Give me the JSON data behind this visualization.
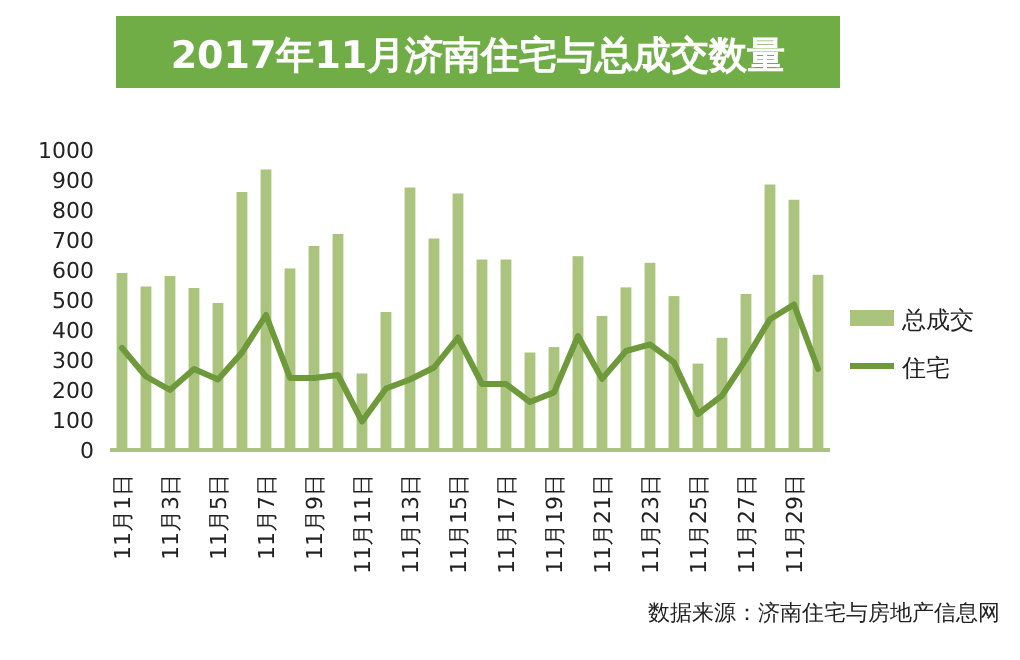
{
  "chart_data": {
    "type": "bar",
    "title": "2017年11月济南住宅与总成交数量",
    "categories": [
      "11月1日",
      null,
      "11月3日",
      null,
      "11月5日",
      null,
      "11月7日",
      null,
      "11月9日",
      null,
      "11月11日",
      null,
      "11月13日",
      null,
      "11月15日",
      null,
      "11月17日",
      null,
      "11月19日",
      null,
      "11月21日",
      null,
      "11月23日",
      null,
      "11月25日",
      null,
      "11月27日",
      null,
      "11月29日",
      null
    ],
    "series": [
      {
        "name": "总成交",
        "color": "#aac47e",
        "values": [
          590,
          545,
          580,
          540,
          490,
          860,
          935,
          605,
          680,
          720,
          255,
          460,
          875,
          705,
          855,
          635,
          635,
          325,
          343,
          646,
          447,
          542,
          624,
          513,
          288,
          374,
          520,
          885,
          834,
          584
        ]
      },
      {
        "name": "住宅",
        "type": "line",
        "color": "#6f9a3c",
        "values": [
          340,
          245,
          200,
          270,
          235,
          325,
          450,
          240,
          240,
          250,
          95,
          205,
          235,
          275,
          375,
          220,
          220,
          160,
          192,
          380,
          237,
          330,
          352,
          292,
          120,
          181,
          303,
          436,
          485,
          270
        ]
      }
    ],
    "ylim": [
      0,
      1000
    ],
    "yticks": [
      0,
      100,
      200,
      300,
      400,
      500,
      600,
      700,
      800,
      900,
      1000
    ],
    "legend": "right",
    "grid": false,
    "marker": "none",
    "line_style": "solid",
    "annotations": [
      "数据来源：济南住宅与房地产信息网"
    ]
  }
}
